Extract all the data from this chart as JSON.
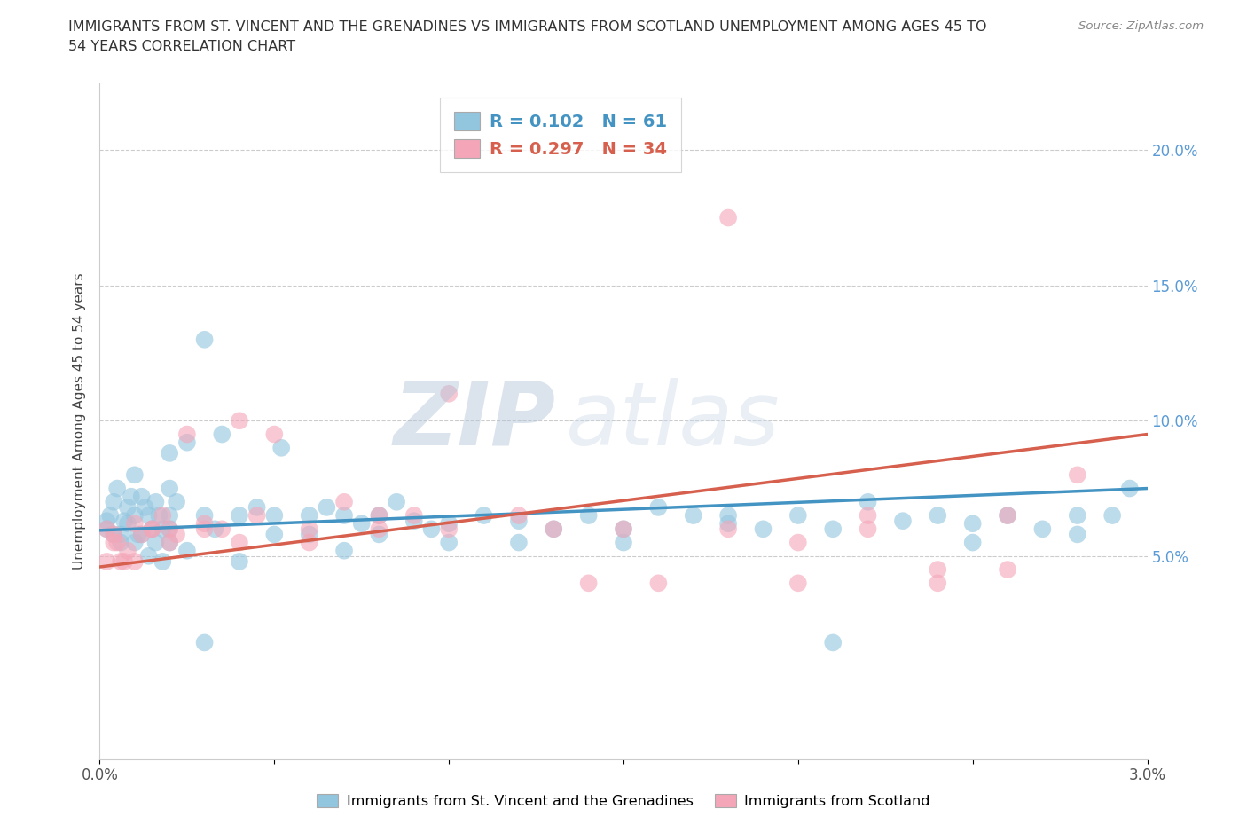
{
  "title_line1": "IMMIGRANTS FROM ST. VINCENT AND THE GRENADINES VS IMMIGRANTS FROM SCOTLAND UNEMPLOYMENT AMONG AGES 45 TO",
  "title_line2": "54 YEARS CORRELATION CHART",
  "source": "Source: ZipAtlas.com",
  "ylabel": "Unemployment Among Ages 45 to 54 years",
  "xlim": [
    0.0,
    0.03
  ],
  "ylim": [
    -0.025,
    0.225
  ],
  "xticks": [
    0.0,
    0.005,
    0.01,
    0.015,
    0.02,
    0.025,
    0.03
  ],
  "xtick_labels": [
    "0.0%",
    "",
    "",
    "",
    "",
    "",
    "3.0%"
  ],
  "yticks": [
    0.05,
    0.1,
    0.15,
    0.2
  ],
  "color_blue": "#92c5de",
  "color_pink": "#f4a6b8",
  "color_blue_line": "#4393c3",
  "color_pink_line": "#d6604d",
  "color_blue_text": "#4393c3",
  "color_pink_text": "#d6604d",
  "color_ytick": "#5b9bd5",
  "watermark_zip": "ZIP",
  "watermark_atlas": "atlas",
  "legend_r1": "0.102",
  "legend_n1": "61",
  "legend_r2": "0.297",
  "legend_n2": "34",
  "blue_points_x": [
    0.0002,
    0.0003,
    0.0004,
    0.0005,
    0.0006,
    0.0007,
    0.0008,
    0.0009,
    0.001,
    0.001,
    0.0011,
    0.0012,
    0.0013,
    0.0014,
    0.0015,
    0.0016,
    0.0017,
    0.0018,
    0.002,
    0.002,
    0.002,
    0.002,
    0.0022,
    0.0025,
    0.003,
    0.003,
    0.0033,
    0.0035,
    0.004,
    0.0045,
    0.005,
    0.0052,
    0.006,
    0.0065,
    0.007,
    0.0075,
    0.008,
    0.0085,
    0.009,
    0.0095,
    0.01,
    0.011,
    0.012,
    0.013,
    0.014,
    0.015,
    0.016,
    0.017,
    0.018,
    0.019,
    0.02,
    0.021,
    0.022,
    0.023,
    0.024,
    0.025,
    0.026,
    0.027,
    0.028,
    0.029,
    0.0295
  ],
  "blue_points_y": [
    0.063,
    0.065,
    0.07,
    0.075,
    0.058,
    0.063,
    0.068,
    0.072,
    0.065,
    0.08,
    0.058,
    0.072,
    0.068,
    0.065,
    0.06,
    0.07,
    0.065,
    0.06,
    0.088,
    0.075,
    0.065,
    0.06,
    0.07,
    0.092,
    0.13,
    0.065,
    0.06,
    0.095,
    0.065,
    0.068,
    0.065,
    0.09,
    0.065,
    0.068,
    0.065,
    0.062,
    0.065,
    0.07,
    0.063,
    0.06,
    0.062,
    0.065,
    0.063,
    0.06,
    0.065,
    0.06,
    0.068,
    0.065,
    0.065,
    0.06,
    0.065,
    0.06,
    0.07,
    0.063,
    0.065,
    0.062,
    0.065,
    0.06,
    0.065,
    0.065,
    0.075
  ],
  "blue_points_x2": [
    0.0002,
    0.0004,
    0.0006,
    0.0008,
    0.001,
    0.0012,
    0.0014,
    0.0016,
    0.0018,
    0.002,
    0.0025,
    0.003,
    0.004,
    0.005,
    0.006,
    0.007,
    0.008,
    0.01,
    0.012,
    0.015,
    0.018,
    0.021,
    0.025,
    0.028
  ],
  "blue_points_y2": [
    0.06,
    0.058,
    0.055,
    0.062,
    0.055,
    0.058,
    0.05,
    0.055,
    0.048,
    0.055,
    0.052,
    0.018,
    0.048,
    0.058,
    0.058,
    0.052,
    0.058,
    0.055,
    0.055,
    0.055,
    0.062,
    0.018,
    0.055,
    0.058
  ],
  "pink_points_x": [
    0.0002,
    0.0004,
    0.0005,
    0.0007,
    0.001,
    0.0012,
    0.0015,
    0.0018,
    0.002,
    0.0022,
    0.0025,
    0.003,
    0.0035,
    0.004,
    0.0045,
    0.005,
    0.006,
    0.007,
    0.008,
    0.009,
    0.01,
    0.012,
    0.014,
    0.016,
    0.018,
    0.02,
    0.022,
    0.024,
    0.026,
    0.028
  ],
  "pink_points_y": [
    0.06,
    0.058,
    0.055,
    0.048,
    0.062,
    0.058,
    0.06,
    0.065,
    0.06,
    0.058,
    0.095,
    0.062,
    0.06,
    0.1,
    0.065,
    0.095,
    0.06,
    0.07,
    0.065,
    0.065,
    0.11,
    0.065,
    0.04,
    0.04,
    0.175,
    0.04,
    0.065,
    0.04,
    0.065,
    0.08
  ],
  "pink_points_x2": [
    0.0002,
    0.0004,
    0.0006,
    0.0008,
    0.001,
    0.0015,
    0.002,
    0.003,
    0.004,
    0.006,
    0.008,
    0.01,
    0.013,
    0.015,
    0.018,
    0.02,
    0.022,
    0.024,
    0.026
  ],
  "pink_points_y2": [
    0.048,
    0.055,
    0.048,
    0.052,
    0.048,
    0.06,
    0.055,
    0.06,
    0.055,
    0.055,
    0.06,
    0.06,
    0.06,
    0.06,
    0.06,
    0.055,
    0.06,
    0.045,
    0.045
  ],
  "blue_line_x": [
    0.0,
    0.03
  ],
  "blue_line_y": [
    0.0595,
    0.075
  ],
  "pink_line_x": [
    0.0,
    0.03
  ],
  "pink_line_y": [
    0.046,
    0.095
  ]
}
